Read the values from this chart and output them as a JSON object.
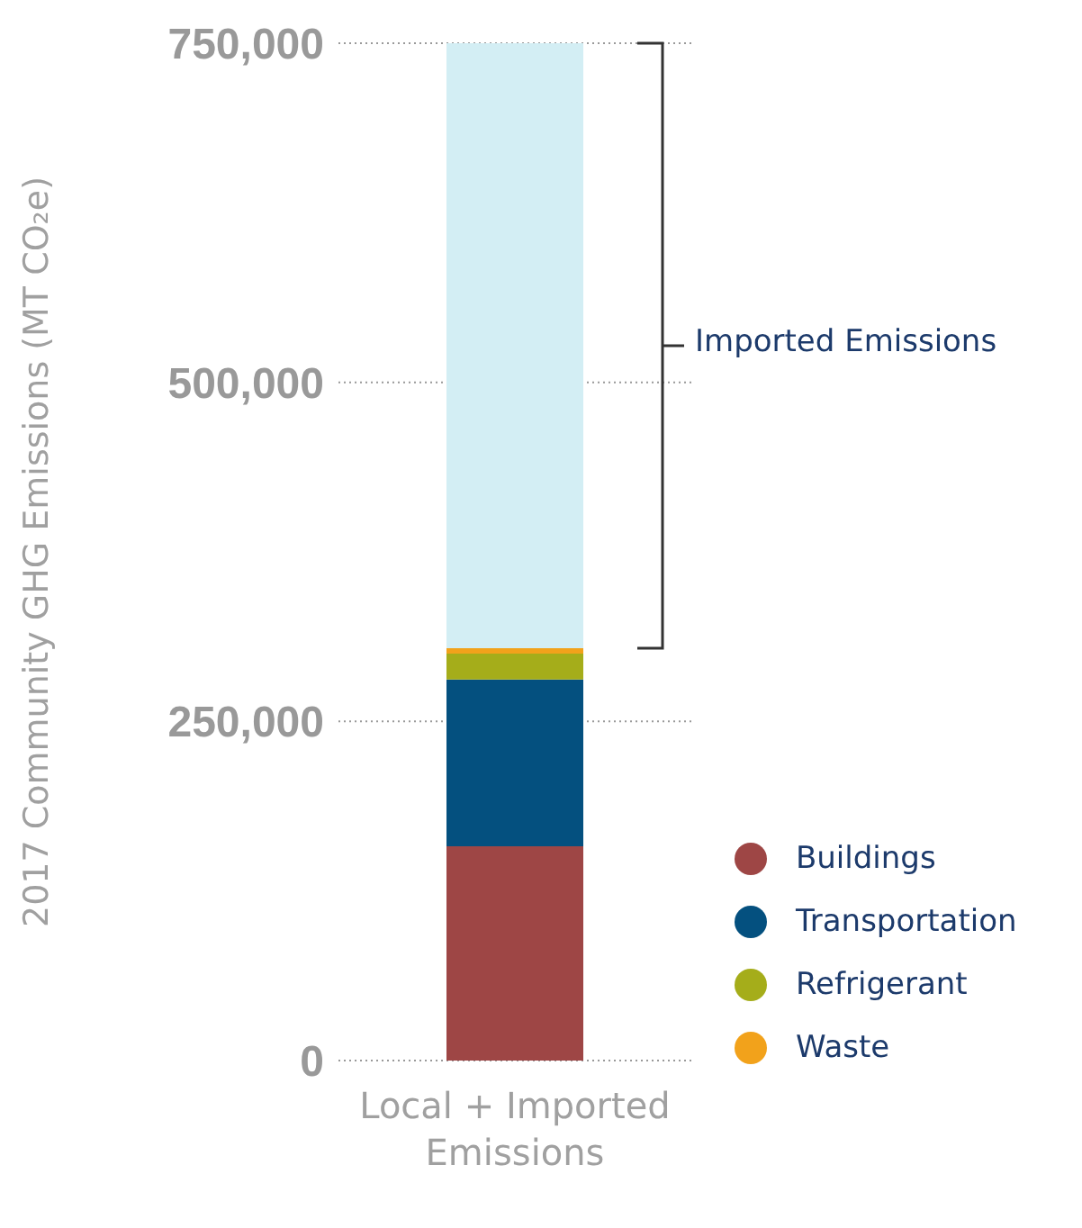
{
  "chart_data": {
    "type": "bar",
    "stacked": true,
    "ylabel": "2017 Community GHG Emissions (MT CO₂e)",
    "categories": [
      "Local + Imported Emissions"
    ],
    "series": [
      {
        "name": "Buildings",
        "color": "#9e4645",
        "values": [
          158000
        ]
      },
      {
        "name": "Transportation",
        "color": "#04507f",
        "values": [
          123000
        ]
      },
      {
        "name": "Refrigerant",
        "color": "#a5ad1a",
        "values": [
          19000
        ]
      },
      {
        "name": "Waste",
        "color": "#f2a21b",
        "values": [
          4000
        ]
      },
      {
        "color": "#d3eef4",
        "values": [
          446000
        ]
      }
    ],
    "annotations": [
      "Imported Emissions"
    ],
    "ylim": [
      0,
      750000
    ],
    "yticks": [
      0,
      {
        "value": 250000,
        "label": "250,000"
      },
      {
        "value": 500000,
        "label": "500,000"
      },
      {
        "value": 750000,
        "label": "750,000"
      }
    ],
    "grid": "y",
    "legend": "right"
  }
}
